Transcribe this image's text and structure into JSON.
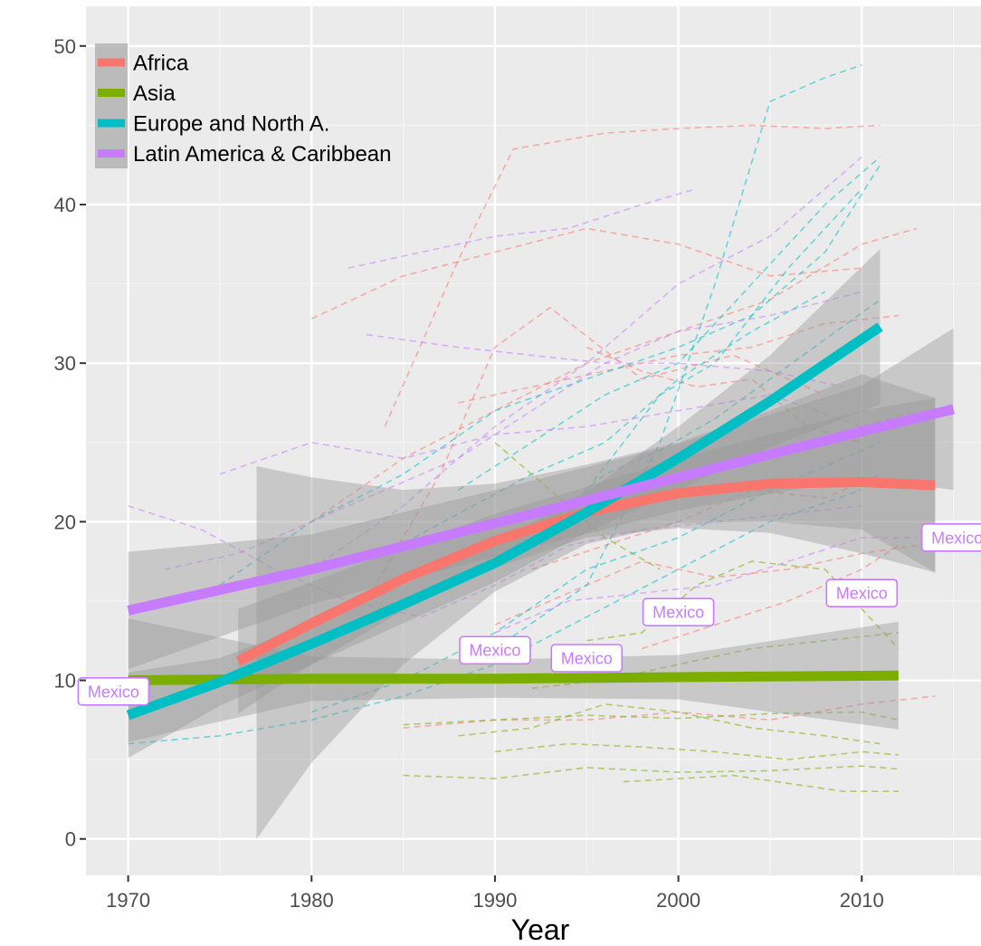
{
  "chart_data": {
    "type": "line",
    "title": "",
    "xlabel": "Year",
    "ylabel": "",
    "xlim": [
      1967.7,
      2016.5
    ],
    "ylim": [
      -2.3,
      52.5
    ],
    "x_ticks": [
      1970,
      1980,
      1990,
      2000,
      2010
    ],
    "y_ticks": [
      0,
      10,
      20,
      30,
      40,
      50
    ],
    "grid": true,
    "legend_position": "top-left",
    "series": [
      {
        "name": "Africa",
        "color": "#f8766d",
        "x": [
          1976,
          1980,
          1985,
          1990,
          1995,
          2000,
          2005,
          2010,
          2014
        ],
        "values": [
          11.2,
          13.6,
          16.4,
          18.8,
          20.6,
          21.8,
          22.4,
          22.5,
          22.3
        ],
        "band_upper": [
          14.5,
          16.2,
          18.4,
          20.5,
          22.2,
          24.0,
          25.5,
          27.0,
          27.8
        ],
        "band_lower": [
          7.9,
          11.0,
          14.4,
          17.1,
          19.0,
          19.6,
          19.3,
          18.0,
          16.8
        ]
      },
      {
        "name": "Asia",
        "color": "#7cae00",
        "x": [
          1970,
          1980,
          1990,
          2000,
          2012
        ],
        "values": [
          10.0,
          10.1,
          10.1,
          10.2,
          10.3
        ],
        "band_upper": [
          13.9,
          11.5,
          11.3,
          11.6,
          13.7
        ],
        "band_lower": [
          6.1,
          8.7,
          8.9,
          8.8,
          6.9
        ]
      },
      {
        "name": "Europe and North A.",
        "color": "#00bfc4",
        "x": [
          1970,
          1975,
          1980,
          1985,
          1990,
          1995,
          2000,
          2005,
          2011
        ],
        "values": [
          7.8,
          9.9,
          12.3,
          14.8,
          17.4,
          20.6,
          24.0,
          27.6,
          32.3
        ],
        "band_upper": [
          10.5,
          11.4,
          13.6,
          16.0,
          18.6,
          21.9,
          26.0,
          30.5,
          37.2
        ],
        "band_lower": [
          5.1,
          8.4,
          11.0,
          13.6,
          16.2,
          19.3,
          22.0,
          24.7,
          27.4
        ]
      },
      {
        "name": "Latin America & Caribbean",
        "color": "#c77cff",
        "x": [
          1970,
          1980,
          1990,
          2000,
          2010,
          2015
        ],
        "values": [
          14.4,
          17.0,
          19.9,
          22.8,
          25.7,
          27.1
        ],
        "band_upper": [
          18.1,
          19.2,
          22.0,
          24.9,
          28.6,
          32.2
        ],
        "band_lower": [
          10.7,
          14.8,
          17.8,
          20.7,
          22.8,
          22.0
        ]
      }
    ],
    "africa_extra_band": {
      "x": [
        1977,
        1980,
        1985,
        1990,
        1995,
        2000,
        2005,
        2010,
        2014
      ],
      "upper": [
        23.5,
        22.8,
        22.0,
        22.4,
        23.6,
        25.0,
        27.0,
        29.3,
        27.8
      ],
      "lower": [
        0.0,
        4.8,
        11.0,
        15.6,
        18.6,
        19.9,
        20.0,
        19.5,
        16.8
      ]
    },
    "background_lines": [
      {
        "color": "#f8766d",
        "x": [
          1984,
          1988,
          1991,
          1996,
          2000,
          2004,
          2008,
          2011
        ],
        "values": [
          26.0,
          36.5,
          43.5,
          44.5,
          44.8,
          45.0,
          44.8,
          45.0
        ]
      },
      {
        "color": "#f8766d",
        "x": [
          1983,
          1987,
          1990,
          1993,
          1998,
          2003,
          2008
        ],
        "values": [
          15.0,
          23.0,
          31.0,
          33.5,
          29.0,
          30.5,
          28.0
        ]
      },
      {
        "color": "#f8766d",
        "x": [
          1980,
          1985,
          1990,
          1995,
          2000,
          2005,
          2010
        ],
        "values": [
          32.8,
          35.5,
          37.0,
          38.5,
          37.5,
          35.5,
          36.0
        ]
      },
      {
        "color": "#f8766d",
        "x": [
          1980,
          1985,
          1990,
          1995,
          2000,
          2005,
          2010,
          2013
        ],
        "values": [
          20.0,
          24.0,
          27.0,
          30.0,
          32.0,
          34.0,
          37.5,
          38.5
        ]
      },
      {
        "color": "#f8766d",
        "x": [
          1988,
          1992,
          1996,
          2000,
          2004,
          2008,
          2012
        ],
        "values": [
          27.5,
          28.5,
          29.5,
          30.5,
          31.0,
          32.5,
          33.0
        ]
      },
      {
        "color": "#f8766d",
        "x": [
          1992,
          1996,
          2000,
          2004,
          2008,
          2011
        ],
        "values": [
          17.0,
          18.5,
          20.0,
          22.0,
          21.5,
          23.0
        ]
      },
      {
        "color": "#f8766d",
        "x": [
          1995,
          1998,
          2001,
          2004,
          2007,
          2010
        ],
        "values": [
          31.0,
          29.5,
          28.5,
          29.0,
          26.0,
          25.0
        ]
      },
      {
        "color": "#f8766d",
        "x": [
          1990,
          1994,
          1998,
          2002,
          2006,
          2010,
          2013
        ],
        "values": [
          13.5,
          15.5,
          17.5,
          16.5,
          17.0,
          18.0,
          18.5
        ]
      },
      {
        "color": "#f8766d",
        "x": [
          1985,
          1990,
          1995,
          2000,
          2005,
          2010,
          2014
        ],
        "values": [
          7.0,
          7.5,
          7.5,
          8.0,
          7.5,
          8.5,
          9.0
        ]
      },
      {
        "color": "#f8766d",
        "x": [
          1998,
          2002,
          2006,
          2010,
          2012
        ],
        "values": [
          12.0,
          13.5,
          15.0,
          17.0,
          18.5
        ]
      },
      {
        "color": "#7cae00",
        "x": [
          1985,
          1990,
          1995,
          2000,
          2005,
          2010,
          2012
        ],
        "values": [
          4.0,
          3.8,
          4.5,
          4.2,
          4.3,
          4.6,
          4.4
        ]
      },
      {
        "color": "#7cae00",
        "x": [
          1990,
          1994,
          1998,
          2002,
          2006,
          2010,
          2012
        ],
        "values": [
          5.5,
          6.0,
          5.8,
          5.5,
          5.0,
          5.5,
          5.3
        ]
      },
      {
        "color": "#7cae00",
        "x": [
          1985,
          1990,
          1995,
          2000,
          2005,
          2010,
          2012
        ],
        "values": [
          7.2,
          7.5,
          7.8,
          7.6,
          7.9,
          8.0,
          7.5
        ]
      },
      {
        "color": "#7cae00",
        "x": [
          1995,
          1998,
          2001,
          2004,
          2008,
          2012
        ],
        "values": [
          12.5,
          13.0,
          16.0,
          17.5,
          17.0,
          12.0
        ]
      },
      {
        "color": "#7cae00",
        "x": [
          1988,
          1992,
          1996,
          2000,
          2004,
          2008,
          2011
        ],
        "values": [
          6.5,
          7.0,
          8.5,
          8.0,
          7.0,
          6.5,
          6.0
        ]
      },
      {
        "color": "#7cae00",
        "x": [
          1997,
          2000,
          2003,
          2006,
          2009,
          2012
        ],
        "values": [
          3.6,
          3.8,
          4.0,
          3.5,
          3.0,
          3.0
        ]
      },
      {
        "color": "#7cae00",
        "x": [
          1992,
          1996,
          2000,
          2004,
          2008,
          2012
        ],
        "values": [
          9.5,
          10.0,
          11.0,
          12.0,
          12.5,
          13.0
        ]
      },
      {
        "color": "#7cae00",
        "x": [
          1990,
          1993,
          1996,
          1999
        ],
        "values": [
          25.0,
          22.0,
          19.0,
          17.0
        ]
      },
      {
        "color": "#00bfc4",
        "x": [
          1990,
          1995,
          1999,
          2002,
          2005,
          2008,
          2010
        ],
        "values": [
          12.0,
          16.0,
          25.0,
          35.0,
          46.5,
          48.0,
          48.8
        ]
      },
      {
        "color": "#00bfc4",
        "x": [
          1988,
          1992,
          1996,
          2000,
          2004,
          2008,
          2011
        ],
        "values": [
          22.0,
          25.0,
          28.0,
          30.0,
          35.0,
          40.0,
          43.0
        ]
      },
      {
        "color": "#00bfc4",
        "x": [
          1975,
          1980,
          1985,
          1990,
          1995,
          2000,
          2004,
          2008,
          2011
        ],
        "values": [
          16.0,
          20.0,
          23.0,
          27.0,
          29.0,
          31.0,
          33.0,
          37.0,
          42.5
        ]
      },
      {
        "color": "#00bfc4",
        "x": [
          1993,
          1996,
          1999,
          2002,
          2005,
          2008,
          2011
        ],
        "values": [
          20.0,
          23.0,
          24.5,
          26.5,
          29.0,
          31.5,
          34.0
        ]
      },
      {
        "color": "#00bfc4",
        "x": [
          1980,
          1985,
          1990,
          1995,
          2000,
          2005,
          2011
        ],
        "values": [
          8.0,
          10.0,
          13.0,
          17.0,
          19.0,
          22.0,
          25.0
        ]
      },
      {
        "color": "#00bfc4",
        "x": [
          1970,
          1975,
          1980,
          1985,
          1990,
          1995,
          2000,
          2005,
          2010
        ],
        "values": [
          6.0,
          6.5,
          7.5,
          9.0,
          11.0,
          14.0,
          17.0,
          20.0,
          22.0
        ]
      },
      {
        "color": "#00bfc4",
        "x": [
          1995,
          1999,
          2002,
          2006,
          2010
        ],
        "values": [
          22.0,
          28.0,
          30.0,
          36.0,
          41.0
        ]
      },
      {
        "color": "#00bfc4",
        "x": [
          1984,
          1988,
          1992,
          1996,
          2000,
          2004,
          2008
        ],
        "values": [
          18.0,
          20.5,
          23.0,
          25.0,
          29.0,
          32.0,
          34.5
        ]
      },
      {
        "color": "#c77cff",
        "x": [
          1980,
          1985,
          1990,
          1995,
          2000,
          2005,
          2010
        ],
        "values": [
          17.0,
          21.0,
          26.0,
          30.0,
          35.0,
          38.0,
          43.0
        ]
      },
      {
        "color": "#c77cff",
        "x": [
          1982,
          1986,
          1990,
          1994,
          1998,
          2001
        ],
        "values": [
          36.0,
          37.0,
          38.0,
          38.5,
          40.0,
          41.0
        ]
      },
      {
        "color": "#c77cff",
        "x": [
          1972,
          1976,
          1980,
          1984,
          1988,
          1992,
          1996,
          2000,
          2005,
          2010
        ],
        "values": [
          17.0,
          18.0,
          20.0,
          22.0,
          24.0,
          27.0,
          30.0,
          32.0,
          33.0,
          34.5
        ]
      },
      {
        "color": "#c77cff",
        "x": [
          1983,
          1988,
          1992,
          1996,
          2000,
          2005,
          2009
        ],
        "values": [
          31.8,
          31.0,
          30.5,
          30.0,
          30.0,
          29.5,
          28.5
        ]
      },
      {
        "color": "#c77cff",
        "x": [
          1970,
          1974,
          1978,
          1982,
          1986,
          1990,
          1994,
          1998,
          2002,
          2006,
          2010
        ],
        "values": [
          21.0,
          19.5,
          17.0,
          15.0,
          14.0,
          16.0,
          18.5,
          19.5,
          20.0,
          20.5,
          21.0
        ]
      },
      {
        "color": "#c77cff",
        "x": [
          1975,
          1980,
          1985,
          1990,
          1995,
          2000,
          2005,
          2010,
          2013
        ],
        "values": [
          23.0,
          25.0,
          24.0,
          25.5,
          26.0,
          27.0,
          28.0,
          26.0,
          27.0
        ]
      },
      {
        "color": "#c77cff",
        "x": [
          1990,
          1994,
          1998,
          2002,
          2006,
          2010,
          2013
        ],
        "values": [
          13.0,
          15.0,
          15.5,
          16.0,
          17.5,
          19.0,
          19.0
        ]
      }
    ],
    "annotations": [
      {
        "text": "Mexico",
        "x": 1969.2,
        "y": 9.3
      },
      {
        "text": "Mexico",
        "x": 1990.0,
        "y": 11.9
      },
      {
        "text": "Mexico",
        "x": 1995.0,
        "y": 11.4
      },
      {
        "text": "Mexico",
        "x": 2000.0,
        "y": 14.3
      },
      {
        "text": "Mexico",
        "x": 2010.0,
        "y": 15.5
      },
      {
        "text": "Mexico",
        "x": 2015.2,
        "y": 19.0
      }
    ]
  }
}
